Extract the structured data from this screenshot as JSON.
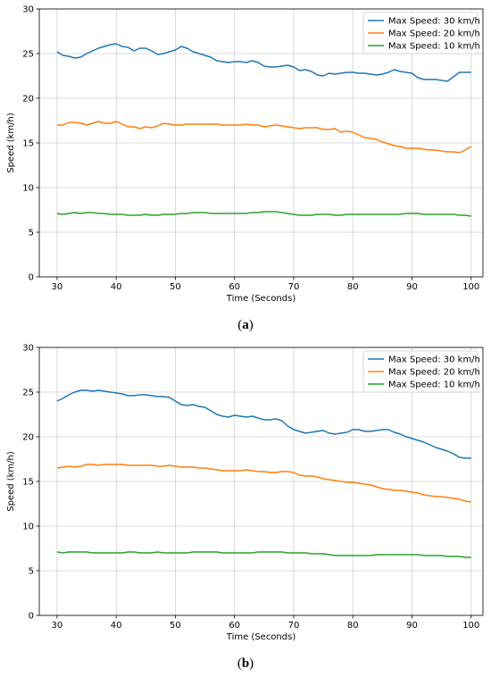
{
  "chart_data": [
    {
      "type": "line",
      "caption_letter": "a",
      "xlabel": "Time (Seconds)",
      "ylabel": "Speed (km/h)",
      "xlim": [
        27,
        102
      ],
      "ylim": [
        0,
        30
      ],
      "xticks": [
        30,
        40,
        50,
        60,
        70,
        80,
        90,
        100
      ],
      "yticks": [
        0,
        5,
        10,
        15,
        20,
        25,
        30
      ],
      "grid": true,
      "legend_position": "top-right",
      "x": [
        30,
        31,
        32,
        33,
        34,
        35,
        36,
        37,
        38,
        39,
        40,
        41,
        42,
        43,
        44,
        45,
        46,
        47,
        48,
        49,
        50,
        51,
        52,
        53,
        54,
        55,
        56,
        57,
        58,
        59,
        60,
        61,
        62,
        63,
        64,
        65,
        66,
        67,
        68,
        69,
        70,
        71,
        72,
        73,
        74,
        75,
        76,
        77,
        78,
        79,
        80,
        81,
        82,
        83,
        84,
        85,
        86,
        87,
        88,
        89,
        90,
        91,
        92,
        93,
        94,
        95,
        96,
        97,
        98,
        99,
        100
      ],
      "series": [
        {
          "name": "Max Speed: 30 km/h",
          "color": "#1f77b4",
          "values": [
            25.2,
            24.8,
            24.7,
            24.5,
            24.6,
            25.0,
            25.3,
            25.6,
            25.8,
            26.0,
            26.1,
            25.8,
            25.7,
            25.3,
            25.6,
            25.6,
            25.3,
            24.9,
            25.0,
            25.2,
            25.4,
            25.8,
            25.6,
            25.2,
            25.0,
            24.8,
            24.6,
            24.2,
            24.1,
            24.0,
            24.1,
            24.1,
            24.0,
            24.2,
            24.0,
            23.6,
            23.5,
            23.5,
            23.6,
            23.7,
            23.5,
            23.1,
            23.2,
            23.0,
            22.6,
            22.5,
            22.8,
            22.7,
            22.8,
            22.9,
            22.9,
            22.8,
            22.8,
            22.7,
            22.6,
            22.7,
            22.9,
            23.2,
            23.0,
            22.9,
            22.8,
            22.3,
            22.1,
            22.1,
            22.1,
            22.0,
            21.9,
            22.4,
            22.9,
            22.9,
            22.9
          ]
        },
        {
          "name": "Max Speed: 20 km/h",
          "color": "#ff7f0e",
          "values": [
            17.0,
            17.0,
            17.3,
            17.3,
            17.2,
            17.0,
            17.2,
            17.4,
            17.2,
            17.2,
            17.4,
            17.1,
            16.8,
            16.8,
            16.6,
            16.8,
            16.7,
            16.9,
            17.2,
            17.1,
            17.0,
            17.0,
            17.1,
            17.1,
            17.1,
            17.1,
            17.1,
            17.1,
            17.0,
            17.0,
            17.0,
            17.0,
            17.1,
            17.0,
            17.0,
            16.8,
            16.9,
            17.0,
            16.9,
            16.8,
            16.7,
            16.6,
            16.7,
            16.7,
            16.7,
            16.5,
            16.5,
            16.6,
            16.2,
            16.3,
            16.2,
            15.9,
            15.6,
            15.5,
            15.4,
            15.1,
            14.9,
            14.7,
            14.6,
            14.4,
            14.4,
            14.4,
            14.3,
            14.2,
            14.2,
            14.1,
            14.0,
            14.0,
            13.9,
            14.2,
            14.6
          ]
        },
        {
          "name": "Max Speed: 10 km/h",
          "color": "#2ca02c",
          "values": [
            7.1,
            7.0,
            7.1,
            7.2,
            7.1,
            7.2,
            7.2,
            7.1,
            7.1,
            7.0,
            7.0,
            7.0,
            6.9,
            6.9,
            6.9,
            7.0,
            6.9,
            6.9,
            7.0,
            7.0,
            7.0,
            7.1,
            7.1,
            7.2,
            7.2,
            7.2,
            7.1,
            7.1,
            7.1,
            7.1,
            7.1,
            7.1,
            7.1,
            7.2,
            7.2,
            7.3,
            7.3,
            7.3,
            7.2,
            7.1,
            7.0,
            6.9,
            6.9,
            6.9,
            7.0,
            7.0,
            7.0,
            6.9,
            6.9,
            7.0,
            7.0,
            7.0,
            7.0,
            7.0,
            7.0,
            7.0,
            7.0,
            7.0,
            7.0,
            7.1,
            7.1,
            7.1,
            7.0,
            7.0,
            7.0,
            7.0,
            7.0,
            7.0,
            6.9,
            6.9,
            6.8
          ]
        }
      ]
    },
    {
      "type": "line",
      "caption_letter": "b",
      "xlabel": "Time (Seconds)",
      "ylabel": "Speed (km/h)",
      "xlim": [
        27,
        102
      ],
      "ylim": [
        0,
        30
      ],
      "xticks": [
        30,
        40,
        50,
        60,
        70,
        80,
        90,
        100
      ],
      "yticks": [
        0,
        5,
        10,
        15,
        20,
        25,
        30
      ],
      "grid": true,
      "legend_position": "top-right",
      "x": [
        30,
        31,
        32,
        33,
        34,
        35,
        36,
        37,
        38,
        39,
        40,
        41,
        42,
        43,
        44,
        45,
        46,
        47,
        48,
        49,
        50,
        51,
        52,
        53,
        54,
        55,
        56,
        57,
        58,
        59,
        60,
        61,
        62,
        63,
        64,
        65,
        66,
        67,
        68,
        69,
        70,
        71,
        72,
        73,
        74,
        75,
        76,
        77,
        78,
        79,
        80,
        81,
        82,
        83,
        84,
        85,
        86,
        87,
        88,
        89,
        90,
        91,
        92,
        93,
        94,
        95,
        96,
        97,
        98,
        99,
        100
      ],
      "series": [
        {
          "name": "Max Speed: 30 km/h",
          "color": "#1f77b4",
          "values": [
            24.0,
            24.3,
            24.7,
            25.0,
            25.2,
            25.2,
            25.1,
            25.2,
            25.1,
            25.0,
            24.9,
            24.8,
            24.6,
            24.6,
            24.7,
            24.7,
            24.6,
            24.5,
            24.5,
            24.4,
            24.0,
            23.6,
            23.5,
            23.6,
            23.4,
            23.3,
            22.9,
            22.5,
            22.3,
            22.2,
            22.4,
            22.3,
            22.2,
            22.3,
            22.1,
            21.9,
            21.9,
            22.0,
            21.8,
            21.2,
            20.8,
            20.6,
            20.4,
            20.5,
            20.6,
            20.7,
            20.4,
            20.3,
            20.4,
            20.5,
            20.8,
            20.8,
            20.6,
            20.6,
            20.7,
            20.8,
            20.8,
            20.5,
            20.3,
            20.0,
            19.8,
            19.6,
            19.4,
            19.1,
            18.8,
            18.6,
            18.4,
            18.1,
            17.7,
            17.6,
            17.6
          ]
        },
        {
          "name": "Max Speed: 20 km/h",
          "color": "#ff7f0e",
          "values": [
            16.5,
            16.6,
            16.7,
            16.6,
            16.7,
            16.9,
            16.9,
            16.8,
            16.9,
            16.9,
            16.9,
            16.9,
            16.8,
            16.8,
            16.8,
            16.8,
            16.8,
            16.7,
            16.7,
            16.8,
            16.7,
            16.6,
            16.6,
            16.6,
            16.5,
            16.5,
            16.4,
            16.3,
            16.2,
            16.2,
            16.2,
            16.2,
            16.3,
            16.2,
            16.1,
            16.1,
            16.0,
            16.0,
            16.1,
            16.1,
            16.0,
            15.7,
            15.6,
            15.6,
            15.5,
            15.3,
            15.2,
            15.1,
            15.0,
            14.9,
            14.9,
            14.8,
            14.7,
            14.6,
            14.4,
            14.2,
            14.1,
            14.0,
            14.0,
            13.9,
            13.8,
            13.7,
            13.5,
            13.4,
            13.3,
            13.3,
            13.2,
            13.1,
            13.0,
            12.8,
            12.7
          ]
        },
        {
          "name": "Max Speed: 10 km/h",
          "color": "#2ca02c",
          "values": [
            7.1,
            7.0,
            7.1,
            7.1,
            7.1,
            7.1,
            7.0,
            7.0,
            7.0,
            7.0,
            7.0,
            7.0,
            7.1,
            7.1,
            7.0,
            7.0,
            7.0,
            7.1,
            7.0,
            7.0,
            7.0,
            7.0,
            7.0,
            7.1,
            7.1,
            7.1,
            7.1,
            7.1,
            7.0,
            7.0,
            7.0,
            7.0,
            7.0,
            7.0,
            7.1,
            7.1,
            7.1,
            7.1,
            7.1,
            7.0,
            7.0,
            7.0,
            7.0,
            6.9,
            6.9,
            6.9,
            6.8,
            6.7,
            6.7,
            6.7,
            6.7,
            6.7,
            6.7,
            6.7,
            6.8,
            6.8,
            6.8,
            6.8,
            6.8,
            6.8,
            6.8,
            6.8,
            6.7,
            6.7,
            6.7,
            6.7,
            6.6,
            6.6,
            6.6,
            6.5,
            6.5
          ]
        }
      ]
    }
  ]
}
